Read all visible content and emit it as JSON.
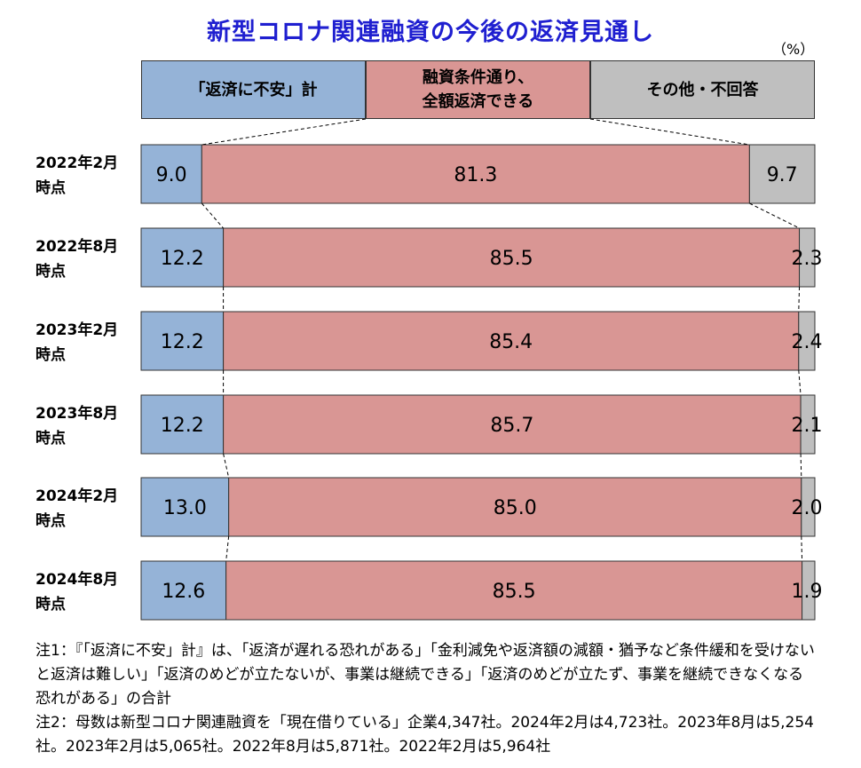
{
  "title": "新型コロナ関連融資の今後の返済見通し",
  "unit": "（%）",
  "colors": {
    "anxiety": "#95b3d7",
    "full": "#d99694",
    "other": "#bfbfbf",
    "title": "#1f1fd0"
  },
  "chart_data": {
    "type": "bar",
    "orientation": "horizontal",
    "stacked": "100%",
    "title": "新型コロナ関連融資の今後の返済見通し",
    "categories": [
      "2022年2月時点",
      "2022年8月時点",
      "2023年2月時点",
      "2023年8月時点",
      "2024年2月時点",
      "2024年8月時点"
    ],
    "category_lines": [
      [
        "2022年2月",
        "時点"
      ],
      [
        "2022年8月",
        "時点"
      ],
      [
        "2023年2月",
        "時点"
      ],
      [
        "2023年8月",
        "時点"
      ],
      [
        "2024年2月",
        "時点"
      ],
      [
        "2024年8月",
        "時点"
      ]
    ],
    "series": [
      {
        "name": "「返済に不安」計",
        "values": [
          9.0,
          12.2,
          12.2,
          12.2,
          13.0,
          12.6
        ],
        "labels": [
          "9.0",
          "12.2",
          "12.2",
          "12.2",
          "13.0",
          "12.6"
        ]
      },
      {
        "name": "融資条件通り、全額返済できる",
        "name_lines": [
          "融資条件通り、",
          "全額返済できる"
        ],
        "values": [
          81.3,
          85.5,
          85.4,
          85.7,
          85.0,
          85.5
        ],
        "labels": [
          "81.3",
          "85.5",
          "85.4",
          "85.7",
          "85.0",
          "85.5"
        ]
      },
      {
        "name": "その他・不回答",
        "values": [
          9.7,
          2.3,
          2.4,
          2.1,
          2.0,
          1.9
        ],
        "labels": [
          "9.7",
          "2.3",
          "2.4",
          "2.1",
          "2.0",
          "1.9"
        ]
      }
    ],
    "xlim": [
      0,
      100
    ],
    "legend": "top",
    "connector_lines": true
  },
  "notes": [
    "注1：『「返済に不安」計』は、「返済が遅れる恐れがある」「金利減免や返済額の減額・猶予など条件緩和を受けないと返済は難しい」「返済のめどが立たないが、事業は継続できる」「返済のめどが立たず、事業を継続できなくなる恐れがある」の合計",
    "注2：母数は新型コロナ関連融資を「現在借りている」企業4,347社。2024年2月は4,723社。2023年8月は5,254社。2023年2月は5,065社。2022年8月は5,871社。2022年2月は5,964社"
  ]
}
